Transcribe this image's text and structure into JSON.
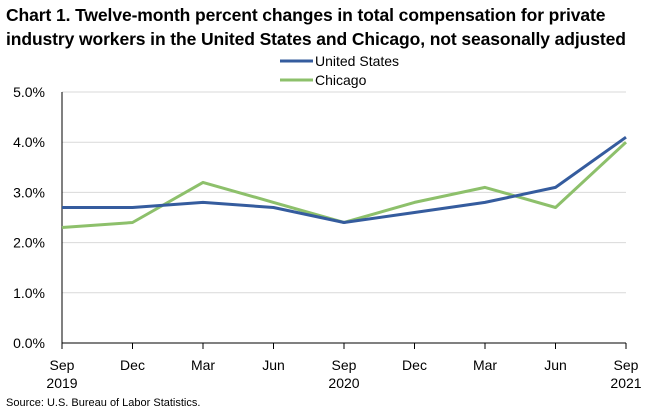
{
  "title": "Chart 1. Twelve-month percent changes in total compensation for private industry workers in the United States and Chicago, not seasonally adjusted",
  "source": "Source: U.S. Bureau of Labor Statistics.",
  "chart_data": {
    "type": "line",
    "title": "Chart 1. Twelve-month percent changes in total compensation for private industry workers in the United States and Chicago, not seasonally adjusted",
    "xlabel": "",
    "ylabel": "",
    "categories": [
      "Sep",
      "Dec",
      "Mar",
      "Jun",
      "Sep",
      "Dec",
      "Mar",
      "Jun",
      "Sep"
    ],
    "year_labels": [
      "2019",
      "",
      "",
      "",
      "2020",
      "",
      "",
      "",
      "2021"
    ],
    "ylim": [
      0,
      5
    ],
    "yticks": [
      0,
      1,
      2,
      3,
      4,
      5
    ],
    "ytick_labels": [
      "0.0%",
      "1.0%",
      "2.0%",
      "3.0%",
      "4.0%",
      "5.0%"
    ],
    "grid": "horizontal",
    "legend": "top-center",
    "series": [
      {
        "name": "United States",
        "color": "#355C9E",
        "values": [
          2.7,
          2.7,
          2.8,
          2.7,
          2.4,
          2.6,
          2.8,
          3.1,
          4.1
        ]
      },
      {
        "name": "Chicago",
        "color": "#8DC06B",
        "values": [
          2.3,
          2.4,
          3.2,
          2.8,
          2.4,
          2.8,
          3.1,
          2.7,
          4.0
        ]
      }
    ]
  }
}
